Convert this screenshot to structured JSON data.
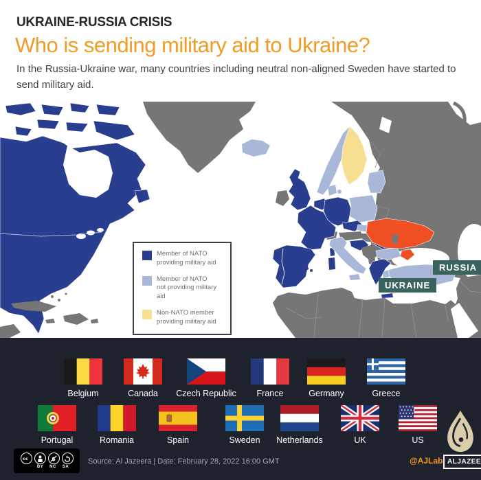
{
  "header": {
    "kicker": "UKRAINE-RUSSIA CRISIS",
    "title": "Who is sending military aid to Ukraine?",
    "subtitle": "In the Russia-Ukraine war, many countries including neutral non-aligned Sweden have started to send military aid."
  },
  "map": {
    "labels": {
      "russia": "RUSSIA",
      "ukraine": "UKRAINE"
    },
    "legend": [
      {
        "line1": "Member of NATO",
        "line2": "providing military aid",
        "color": "#2a3e8f"
      },
      {
        "line1": "Member of NATO",
        "line2": "not providing military aid",
        "color": "#a9b7d8"
      },
      {
        "line1": "Non-NATO member",
        "line2": "providing military aid",
        "color": "#f6df90"
      }
    ],
    "colors": {
      "nato_providing": "#2a3e8f",
      "nato_not_providing": "#a9b7d8",
      "non_nato_providing": "#f6df90",
      "ukraine": "#f04e23",
      "other_land": "#767676",
      "ocean": "#ffffff",
      "label_badge": "#3a635e"
    }
  },
  "flags": {
    "row1": [
      {
        "id": "belgium",
        "name": "Belgium"
      },
      {
        "id": "canada",
        "name": "Canada"
      },
      {
        "id": "czech",
        "name": "Czech Republic"
      },
      {
        "id": "france",
        "name": "France"
      },
      {
        "id": "germany",
        "name": "Germany"
      },
      {
        "id": "greece",
        "name": "Greece"
      }
    ],
    "row2": [
      {
        "id": "portugal",
        "name": "Portugal"
      },
      {
        "id": "romania",
        "name": "Romania"
      },
      {
        "id": "spain",
        "name": "Spain"
      },
      {
        "id": "sweden",
        "name": "Sweden"
      },
      {
        "id": "netherlands",
        "name": "Netherlands"
      },
      {
        "id": "uk",
        "name": "UK"
      },
      {
        "id": "us",
        "name": "US"
      }
    ]
  },
  "footer": {
    "license_labels": [
      "BY",
      "NC",
      "SA"
    ],
    "source": "Source: Al Jazeera |  Date: February 28, 2022  16:00 GMT",
    "credit": "@AJLabs",
    "logo_text": "ALJAZEERA"
  }
}
